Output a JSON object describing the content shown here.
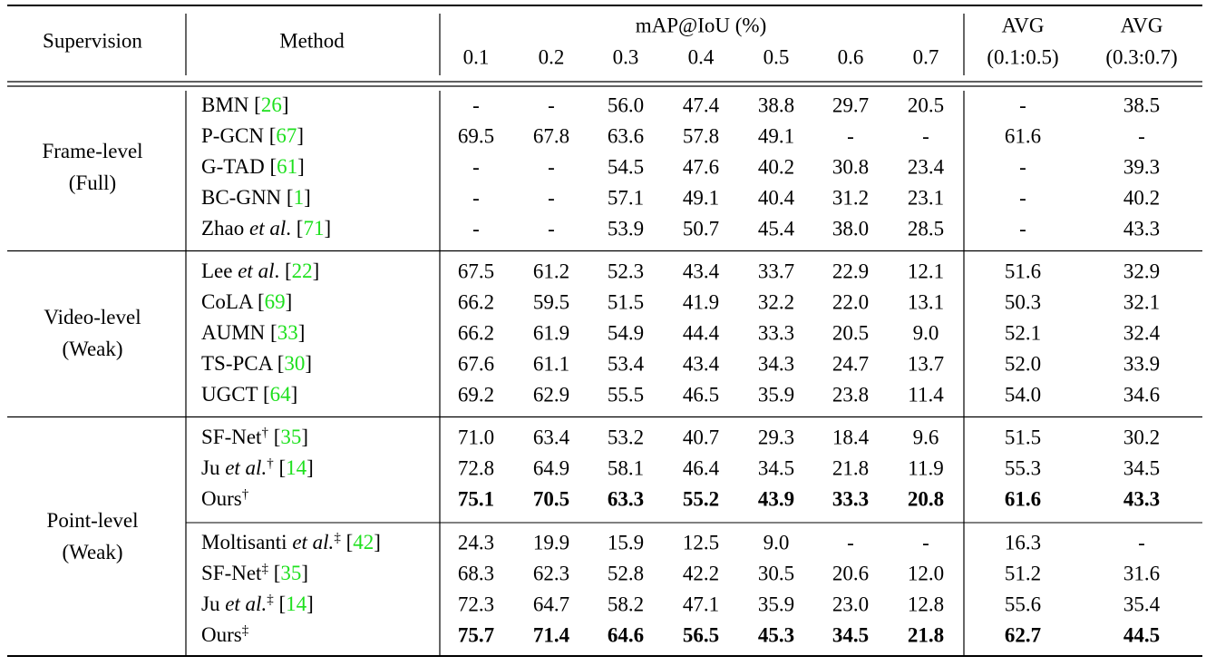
{
  "header": {
    "supervision": "Supervision",
    "method": "Method",
    "map": "mAP@IoU (%)",
    "thresholds": [
      "0.1",
      "0.2",
      "0.3",
      "0.4",
      "0.5",
      "0.6",
      "0.7"
    ],
    "avg": [
      [
        "AVG",
        "(0.1:0.5)"
      ],
      [
        "AVG",
        "(0.3:0.7)"
      ]
    ]
  },
  "groups": [
    {
      "supervision": [
        "Frame-level",
        "(Full)"
      ],
      "blocks": [
        [
          {
            "method": [
              {
                "t": "BMN ["
              },
              {
                "t": "26",
                "s": "cite"
              },
              {
                "t": "]"
              }
            ],
            "cells": [
              "-",
              "-",
              "56.0",
              "47.4",
              "38.8",
              "29.7",
              "20.5",
              "-",
              "38.5"
            ]
          },
          {
            "method": [
              {
                "t": "P-GCN ["
              },
              {
                "t": "67",
                "s": "cite"
              },
              {
                "t": "]"
              }
            ],
            "cells": [
              "69.5",
              "67.8",
              "63.6",
              "57.8",
              "49.1",
              "-",
              "-",
              "61.6",
              "-"
            ]
          },
          {
            "method": [
              {
                "t": "G-TAD ["
              },
              {
                "t": "61",
                "s": "cite"
              },
              {
                "t": "]"
              }
            ],
            "cells": [
              "-",
              "-",
              "54.5",
              "47.6",
              "40.2",
              "30.8",
              "23.4",
              "-",
              "39.3"
            ]
          },
          {
            "method": [
              {
                "t": "BC-GNN ["
              },
              {
                "t": "1",
                "s": "cite"
              },
              {
                "t": "]"
              }
            ],
            "cells": [
              "-",
              "-",
              "57.1",
              "49.1",
              "40.4",
              "31.2",
              "23.1",
              "-",
              "40.2"
            ]
          },
          {
            "method": [
              {
                "t": "Zhao "
              },
              {
                "t": "et al",
                "s": "i"
              },
              {
                "t": ". ["
              },
              {
                "t": "71",
                "s": "cite"
              },
              {
                "t": "]"
              }
            ],
            "cells": [
              "-",
              "-",
              "53.9",
              "50.7",
              "45.4",
              "38.0",
              "28.5",
              "-",
              "43.3"
            ]
          }
        ]
      ]
    },
    {
      "supervision": [
        "Video-level",
        "(Weak)"
      ],
      "blocks": [
        [
          {
            "method": [
              {
                "t": "Lee "
              },
              {
                "t": "et al",
                "s": "i"
              },
              {
                "t": ". ["
              },
              {
                "t": "22",
                "s": "cite"
              },
              {
                "t": "]"
              }
            ],
            "cells": [
              "67.5",
              "61.2",
              "52.3",
              "43.4",
              "33.7",
              "22.9",
              "12.1",
              "51.6",
              "32.9"
            ]
          },
          {
            "method": [
              {
                "t": "CoLA ["
              },
              {
                "t": "69",
                "s": "cite"
              },
              {
                "t": "]"
              }
            ],
            "cells": [
              "66.2",
              "59.5",
              "51.5",
              "41.9",
              "32.2",
              "22.0",
              "13.1",
              "50.3",
              "32.1"
            ]
          },
          {
            "method": [
              {
                "t": "AUMN ["
              },
              {
                "t": "33",
                "s": "cite"
              },
              {
                "t": "]"
              }
            ],
            "cells": [
              "66.2",
              "61.9",
              "54.9",
              "44.4",
              "33.3",
              "20.5",
              "9.0",
              "52.1",
              "32.4"
            ]
          },
          {
            "method": [
              {
                "t": "TS-PCA ["
              },
              {
                "t": "30",
                "s": "cite"
              },
              {
                "t": "]"
              }
            ],
            "cells": [
              "67.6",
              "61.1",
              "53.4",
              "43.4",
              "34.3",
              "24.7",
              "13.7",
              "52.0",
              "33.9"
            ]
          },
          {
            "method": [
              {
                "t": "UGCT ["
              },
              {
                "t": "64",
                "s": "cite"
              },
              {
                "t": "]"
              }
            ],
            "cells": [
              "69.2",
              "62.9",
              "55.5",
              "46.5",
              "35.9",
              "23.8",
              "11.4",
              "54.0",
              "34.6"
            ]
          }
        ]
      ]
    },
    {
      "supervision": [
        "Point-level",
        "(Weak)"
      ],
      "blocks": [
        [
          {
            "method": [
              {
                "t": "SF-Net"
              },
              {
                "t": "†",
                "s": "sup"
              },
              {
                "t": " ["
              },
              {
                "t": "35",
                "s": "cite"
              },
              {
                "t": "]"
              }
            ],
            "cells": [
              "71.0",
              "63.4",
              "53.2",
              "40.7",
              "29.3",
              "18.4",
              "9.6",
              "51.5",
              "30.2"
            ]
          },
          {
            "method": [
              {
                "t": "Ju "
              },
              {
                "t": "et al.",
                "s": "i"
              },
              {
                "t": "†",
                "s": "sup"
              },
              {
                "t": " ["
              },
              {
                "t": "14",
                "s": "cite"
              },
              {
                "t": "]"
              }
            ],
            "cells": [
              "72.8",
              "64.9",
              "58.1",
              "46.4",
              "34.5",
              "21.8",
              "11.9",
              "55.3",
              "34.5"
            ]
          },
          {
            "method": [
              {
                "t": "Ours"
              },
              {
                "t": "†",
                "s": "sup"
              }
            ],
            "bold": true,
            "cells": [
              "75.1",
              "70.5",
              "63.3",
              "55.2",
              "43.9",
              "33.3",
              "20.8",
              "61.6",
              "43.3"
            ]
          }
        ],
        [
          {
            "method": [
              {
                "t": "Moltisanti "
              },
              {
                "t": "et al.",
                "s": "i"
              },
              {
                "t": "‡",
                "s": "sup"
              },
              {
                "t": " ["
              },
              {
                "t": "42",
                "s": "cite"
              },
              {
                "t": "]"
              }
            ],
            "cells": [
              "24.3",
              "19.9",
              "15.9",
              "12.5",
              "9.0",
              "-",
              "-",
              "16.3",
              "-"
            ]
          },
          {
            "method": [
              {
                "t": "SF-Net"
              },
              {
                "t": "‡",
                "s": "sup"
              },
              {
                "t": " ["
              },
              {
                "t": "35",
                "s": "cite"
              },
              {
                "t": "]"
              }
            ],
            "cells": [
              "68.3",
              "62.3",
              "52.8",
              "42.2",
              "30.5",
              "20.6",
              "12.0",
              "51.2",
              "31.6"
            ]
          },
          {
            "method": [
              {
                "t": "Ju "
              },
              {
                "t": "et al.",
                "s": "i"
              },
              {
                "t": "‡",
                "s": "sup"
              },
              {
                "t": " ["
              },
              {
                "t": "14",
                "s": "cite"
              },
              {
                "t": "]"
              }
            ],
            "cells": [
              "72.3",
              "64.7",
              "58.2",
              "47.1",
              "35.9",
              "23.0",
              "12.8",
              "55.6",
              "35.4"
            ]
          },
          {
            "method": [
              {
                "t": "Ours"
              },
              {
                "t": "‡",
                "s": "sup"
              }
            ],
            "bold": true,
            "cells": [
              "75.7",
              "71.4",
              "64.6",
              "56.5",
              "45.3",
              "34.5",
              "21.8",
              "62.7",
              "44.5"
            ]
          }
        ]
      ]
    }
  ]
}
